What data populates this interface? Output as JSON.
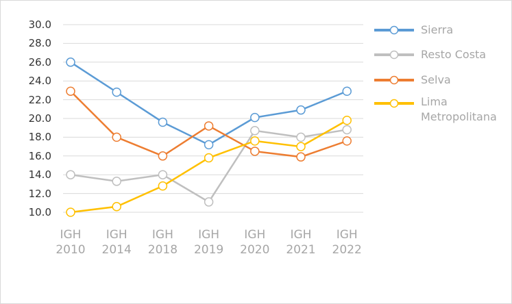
{
  "chart_data": {
    "type": "line",
    "categories": [
      "IGH 2010",
      "IGH 2014",
      "IGH 2018",
      "IGH 2019",
      "IGH 2020",
      "IGH 2021",
      "IGH 2022"
    ],
    "series": [
      {
        "name": "Sierra",
        "color": "#5b9bd5",
        "values": [
          26.0,
          22.8,
          19.6,
          17.2,
          20.1,
          20.9,
          22.9
        ]
      },
      {
        "name": "Resto Costa",
        "color": "#bfbfbf",
        "values": [
          14.0,
          13.3,
          14.0,
          11.1,
          18.7,
          18.0,
          18.8
        ]
      },
      {
        "name": "Selva",
        "color": "#ed7d31",
        "values": [
          22.9,
          18.0,
          16.0,
          19.2,
          16.5,
          15.9,
          17.6
        ]
      },
      {
        "name": "Lima Metropolitana",
        "color": "#ffc000",
        "values": [
          10.0,
          10.6,
          12.8,
          15.8,
          17.6,
          17.0,
          19.8
        ]
      }
    ],
    "ylim": [
      10,
      30
    ],
    "yticks": [
      {
        "value": 10,
        "label": "10.0"
      },
      {
        "value": 12,
        "label": "12.0"
      },
      {
        "value": 14,
        "label": "14.0"
      },
      {
        "value": 16,
        "label": "16.0"
      },
      {
        "value": 18,
        "label": "18.0"
      },
      {
        "value": 20,
        "label": "20.0"
      },
      {
        "value": 22,
        "label": "22.0"
      },
      {
        "value": 24,
        "label": "24.0"
      },
      {
        "value": 26,
        "label": "26.0"
      },
      {
        "value": 28,
        "label": "28.0"
      },
      {
        "value": 30,
        "label": "30.0"
      }
    ],
    "grid": true,
    "legend": "right"
  }
}
